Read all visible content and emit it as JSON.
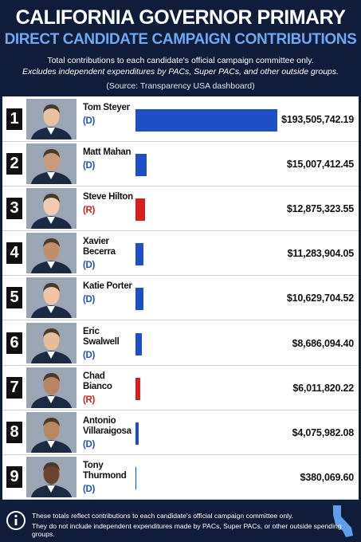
{
  "chart_data": {
    "type": "bar",
    "orientation": "horizontal",
    "title": "CALIFORNIA GOVERNOR PRIMARY",
    "subtitle": "DIRECT CANDIDATE CAMPAIGN CONTRIBUTIONS",
    "notes": [
      "Total contributions to each candidate's official campaign committee only.",
      "Excludes independent expenditures by PACs, Super PACs, and other outside groups."
    ],
    "source": "(Source: Transparency USA dashboard)",
    "ranks": [
      1,
      2,
      3,
      4,
      5,
      6,
      7,
      8,
      9
    ],
    "categories": [
      "Tom Steyer",
      "Matt Mahan",
      "Steve Hilton",
      "Xavier Becerra",
      "Katie Porter",
      "Eric Swalwell",
      "Chad Bianco",
      "Antonio Villaraigosa",
      "Tony Thurmond"
    ],
    "parties": [
      "(D)",
      "(D)",
      "(R)",
      "(D)",
      "(D)",
      "(D)",
      "(R)",
      "(D)",
      "(D)"
    ],
    "colors": [
      "#1f4fc4",
      "#1f4fc4",
      "#d42020",
      "#1f4fc4",
      "#1f4fc4",
      "#1f4fc4",
      "#d42020",
      "#1f4fc4",
      "#1f4fc4"
    ],
    "values": [
      193505742.19,
      15007412.45,
      12875323.55,
      11283904.05,
      10629704.52,
      8686094.4,
      6011820.22,
      4075982.08,
      380069.6
    ],
    "value_labels": [
      "$193,505,742.19",
      "$15,007,412.45",
      "$12,875,323.55",
      "$11,283,904.05",
      "$10,629,704.52",
      "$8,686,094.40",
      "$6,011,820.22",
      "$4,075,982.08",
      "$380,069.60"
    ],
    "footnotes": [
      "These totals reflect contributions to each candidate's official campaign committee only.",
      "They do not include independent expenditures made by PACs, Super PACs, or other outside spending groups."
    ]
  }
}
